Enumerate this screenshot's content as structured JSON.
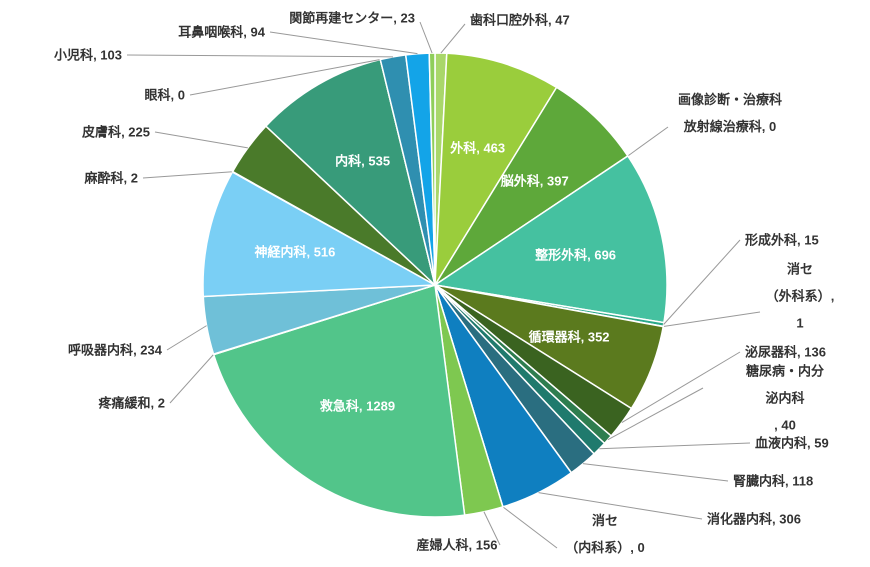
{
  "chart_data": {
    "type": "pie",
    "categories": [
      "歯科口腔外科",
      "外科",
      "脳外科",
      "画像診断・治療科\n放射線治療科",
      "整形外科",
      "形成外科",
      "消セ\n（外科系）",
      "循環器科",
      "泌尿器科",
      "糖尿病・内分泌内科\n",
      "血液内科",
      "腎臓内科",
      "消化器内科",
      "消セ\n（内科系）",
      "産婦人科",
      "救急科",
      "疼痛緩和",
      "呼吸器内科",
      "神経内科",
      "麻酔科",
      "皮膚科",
      "内科",
      "眼科",
      "小児科",
      "耳鼻咽喉科",
      "関節再建センター"
    ],
    "values": [
      47,
      463,
      397,
      0,
      696,
      15,
      1,
      352,
      136,
      40,
      59,
      118,
      306,
      0,
      156,
      1289,
      2,
      234,
      516,
      2,
      225,
      535,
      0,
      103,
      94,
      23
    ],
    "colors": [
      "#a9d76a",
      "#9acd3c",
      "#5ea83a",
      "#3aa088",
      "#45c1a0",
      "#2aa88a",
      "#2e8f6e",
      "#5b7a1e",
      "#3a6320",
      "#2e7d4f",
      "#1f7a6d",
      "#2a6e80",
      "#0f7fc0",
      "#1a6fa0",
      "#7ec850",
      "#52c58a",
      "#5fb0c8",
      "#6fc0d8",
      "#7acff5",
      "#4f8a2e",
      "#4a7a2a",
      "#389b7a",
      "#2d8a7a",
      "#2f8fb0",
      "#13a4e8",
      "#8fce5a"
    ]
  }
}
